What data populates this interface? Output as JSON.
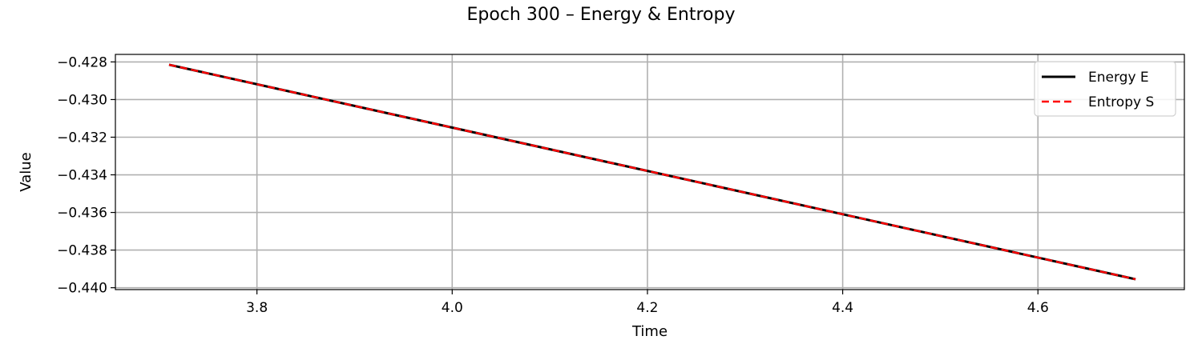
{
  "chart_data": {
    "type": "line",
    "title": "Epoch 300 – Energy & Entropy",
    "xlabel": "Time",
    "ylabel": "Value",
    "xlim": [
      3.655,
      4.75
    ],
    "ylim": [
      -0.4401,
      -0.4276
    ],
    "x_ticks": [
      3.8,
      4.0,
      4.2,
      4.4,
      4.6
    ],
    "x_tick_labels": [
      "3.8",
      "4.0",
      "4.2",
      "4.4",
      "4.6"
    ],
    "y_ticks": [
      -0.428,
      -0.43,
      -0.432,
      -0.434,
      -0.436,
      -0.438,
      -0.44
    ],
    "y_tick_labels": [
      "−0.428",
      "−0.430",
      "−0.432",
      "−0.434",
      "−0.436",
      "−0.438",
      "−0.440"
    ],
    "grid": true,
    "legend_position": "top-right",
    "series": [
      {
        "name": "Energy E",
        "color": "#000000",
        "style": "solid",
        "x": [
          3.71,
          4.7
        ],
        "y": [
          -0.42815,
          -0.43955
        ]
      },
      {
        "name": "Entropy S",
        "color": "#ff0000",
        "style": "dashed",
        "x": [
          3.71,
          4.7
        ],
        "y": [
          -0.42815,
          -0.43955
        ]
      }
    ]
  }
}
